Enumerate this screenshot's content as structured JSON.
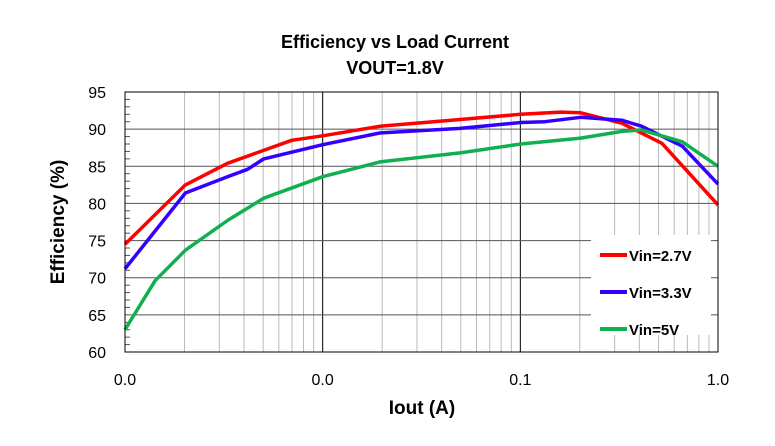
{
  "chart_data": {
    "type": "line",
    "title": "Efficiency vs Load Current",
    "subtitle": "VOUT=1.8V",
    "xlabel": "Iout (A)",
    "ylabel": "Efficiency (%)",
    "xscale": "log",
    "xlim": [
      0.001,
      1
    ],
    "ylim": [
      60,
      95
    ],
    "xticks": [
      0.001,
      0.01,
      0.1,
      1
    ],
    "xtick_labels": [
      "0.0",
      "0.0",
      "0.1",
      "1.0"
    ],
    "yticks": [
      95,
      90,
      85,
      80,
      75,
      70,
      65,
      60
    ],
    "ytick_labels": [
      "95",
      "90",
      "85",
      "80",
      "75",
      "70",
      "65",
      "60"
    ],
    "grid": true,
    "legend_position": "bottom-right",
    "series": [
      {
        "name": "Vin=2.7V",
        "color": "#ff0000",
        "x": [
          0.001,
          0.00202,
          0.0033,
          0.00698,
          0.01,
          0.0196,
          0.0496,
          0.1006,
          0.16,
          0.202,
          0.326,
          0.52,
          1.0
        ],
        "y": [
          74.5,
          82.5,
          85.4,
          88.5,
          89.1,
          90.4,
          91.3,
          92.0,
          92.3,
          92.2,
          90.8,
          88.1,
          79.8
        ]
      },
      {
        "name": "Vin=3.3V",
        "color": "#3300ff",
        "x": [
          0.001,
          0.00202,
          0.0033,
          0.00417,
          0.00503,
          0.01,
          0.0196,
          0.0496,
          0.1006,
          0.133,
          0.202,
          0.326,
          0.41,
          0.66,
          1.0
        ],
        "y": [
          71.2,
          81.4,
          83.6,
          84.6,
          86.0,
          87.9,
          89.5,
          90.1,
          90.9,
          91.0,
          91.6,
          91.2,
          90.4,
          87.7,
          82.6
        ]
      },
      {
        "name": "Vin=5V",
        "color": "#10b050",
        "x": [
          0.001,
          0.00142,
          0.00202,
          0.0033,
          0.00503,
          0.01,
          0.0196,
          0.0496,
          0.1006,
          0.202,
          0.326,
          0.41,
          0.66,
          1.0
        ],
        "y": [
          63.0,
          69.6,
          73.7,
          77.7,
          80.7,
          83.6,
          85.6,
          86.8,
          88.0,
          88.8,
          89.7,
          89.9,
          88.3,
          85.0
        ]
      }
    ]
  }
}
